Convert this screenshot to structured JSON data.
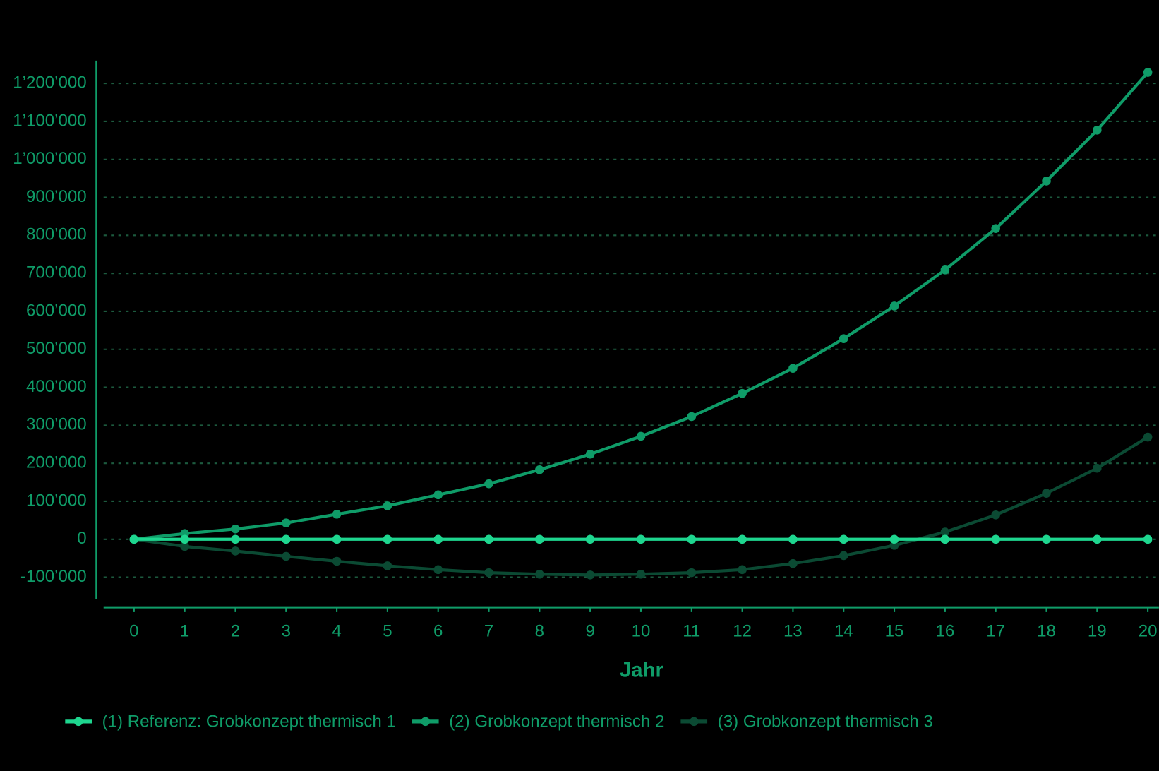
{
  "chart_data": {
    "type": "line",
    "x_label": "Jahr",
    "x": [
      0,
      1,
      2,
      3,
      4,
      5,
      6,
      7,
      8,
      9,
      10,
      11,
      12,
      13,
      14,
      15,
      16,
      17,
      18,
      19,
      20
    ],
    "xlim": [
      -0.6,
      20
    ],
    "xticks": [
      0,
      1,
      2,
      3,
      4,
      5,
      6,
      7,
      8,
      9,
      10,
      11,
      12,
      13,
      14,
      15,
      16,
      17,
      18,
      19,
      20
    ],
    "ylim": [
      -180000,
      1260000
    ],
    "yticks": [
      {
        "value": -100000,
        "label": "-100’000"
      },
      0,
      {
        "value": 100000,
        "label": "100’000"
      },
      {
        "value": 200000,
        "label": "200’000"
      },
      {
        "value": 300000,
        "label": "300’000"
      },
      {
        "value": 400000,
        "label": "400’000"
      },
      {
        "value": 500000,
        "label": "500’000"
      },
      {
        "value": 600000,
        "label": "600’000"
      },
      {
        "value": 700000,
        "label": "700’000"
      },
      {
        "value": 800000,
        "label": "800’000"
      },
      {
        "value": 900000,
        "label": "900’000"
      },
      {
        "value": 1000000,
        "label": "1’000’000"
      },
      {
        "value": 1100000,
        "label": "1’100’000"
      },
      {
        "value": 1200000,
        "label": "1’200’000"
      }
    ],
    "grid": true,
    "series": [
      {
        "name": "(1) Referenz: Grobkonzept thermisch 1",
        "color": "#1ed68f",
        "values": [
          0,
          0,
          0,
          0,
          0,
          0,
          0,
          0,
          0,
          0,
          0,
          0,
          0,
          0,
          0,
          0,
          0,
          0,
          0,
          0,
          0
        ]
      },
      {
        "name": "(2) Grobkonzept thermisch 2",
        "color": "#0f9c68",
        "values": [
          0,
          15000,
          27000,
          43000,
          66000,
          88000,
          117000,
          146000,
          183000,
          224000,
          271000,
          323000,
          384000,
          450000,
          528000,
          614000,
          709000,
          818000,
          943000,
          1077000,
          1229000
        ]
      },
      {
        "name": "(3) Grobkonzept thermisch 3",
        "color": "#0b4a33",
        "values": [
          0,
          -19000,
          -31000,
          -45000,
          -58000,
          -70000,
          -80000,
          -88000,
          -92000,
          -94000,
          -92000,
          -88000,
          -80000,
          -64000,
          -43000,
          -16000,
          19000,
          64000,
          121000,
          187000,
          269000
        ]
      }
    ]
  }
}
